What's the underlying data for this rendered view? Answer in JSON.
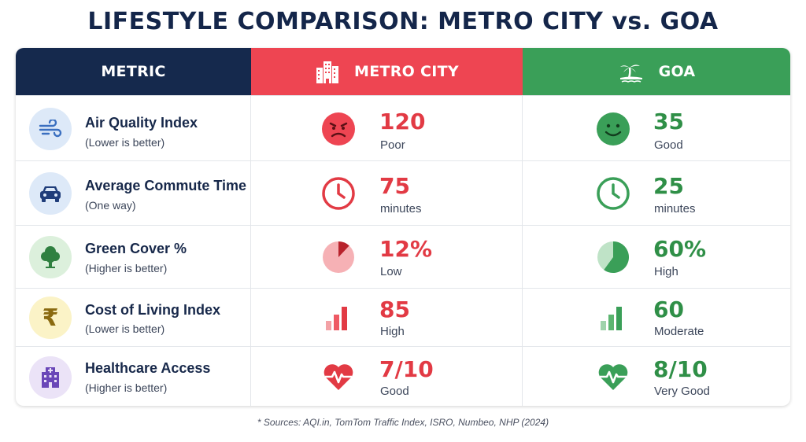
{
  "title": "LIFESTYLE COMPARISON:  METRO CITY vs. GOA",
  "header": {
    "metric": "METRIC",
    "metro": "METRO CITY",
    "goa": "GOA"
  },
  "rows": [
    {
      "name": "Air Quality Index",
      "note": "(Lower is better)",
      "icon": "wind-icon",
      "metro": {
        "value": "120",
        "label": "Poor",
        "icon": "angry-face-icon"
      },
      "goa": {
        "value": "35",
        "label": "Good",
        "icon": "smiley-face-icon"
      }
    },
    {
      "name": "Average Commute Time",
      "note": "(One way)",
      "icon": "car-icon",
      "metro": {
        "value": "75",
        "label": "minutes",
        "icon": "clock-icon"
      },
      "goa": {
        "value": "25",
        "label": "minutes",
        "icon": "clock-icon"
      }
    },
    {
      "name": "Green Cover %",
      "note": "(Higher is better)",
      "icon": "tree-icon",
      "metro": {
        "value": "12%",
        "label": "Low",
        "icon": "pie-icon",
        "fraction": 0.12
      },
      "goa": {
        "value": "60%",
        "label": "High",
        "icon": "pie-icon",
        "fraction": 0.6
      }
    },
    {
      "name": "Cost of Living Index",
      "note": "(Lower is better)",
      "icon": "rupee-icon",
      "metro": {
        "value": "85",
        "label": "High",
        "icon": "bar-chart-icon"
      },
      "goa": {
        "value": "60",
        "label": "Moderate",
        "icon": "bar-chart-icon"
      }
    },
    {
      "name": "Healthcare Access",
      "note": "(Higher is better)",
      "icon": "hospital-icon",
      "metro": {
        "value": "7/10",
        "label": "Good",
        "icon": "heartbeat-icon"
      },
      "goa": {
        "value": "8/10",
        "label": "Very Good",
        "icon": "heartbeat-icon"
      }
    }
  ],
  "source": "* Sources:  AQI.in, TomTom Traffic Index, ISRO, Numbeo, NHP (2024)",
  "colors": {
    "navy": "#15294d",
    "red": "#ee4552",
    "green": "#3a9f58"
  }
}
